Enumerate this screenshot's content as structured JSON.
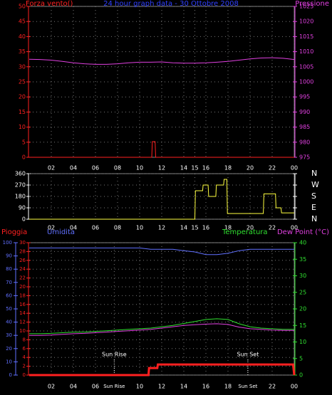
{
  "chart_data": [
    {
      "type": "line",
      "title": "24 hour graph data - 30 Ottobre 2008",
      "xlim": [
        0,
        24
      ],
      "xticks": [
        {
          "value": 2,
          "label": "02"
        },
        {
          "value": 4,
          "label": "04"
        },
        {
          "value": 6,
          "label": "06"
        },
        {
          "value": 8,
          "label": "08"
        },
        10,
        12,
        14,
        15,
        16,
        18,
        20,
        22,
        {
          "value": 24,
          "label": "00"
        }
      ],
      "ylim": [
        0,
        50
      ],
      "yticks": [
        0,
        5,
        10,
        15,
        20,
        25,
        30,
        35,
        40,
        45,
        50
      ],
      "ycolor": "#ff2020",
      "y2lim": [
        975,
        1025
      ],
      "y2ticks": [
        975,
        980,
        985,
        990,
        995,
        1000,
        1005,
        1010,
        1015,
        1020,
        1025
      ],
      "y2color": "#e040e0",
      "grid": true,
      "series": [
        {
          "name": "Forza vento()",
          "color": "#ff2020",
          "x": [
            0,
            11.1,
            11.15,
            11.4,
            11.45,
            24
          ],
          "values": [
            0,
            0,
            5.2,
            5.2,
            0,
            0
          ]
        },
        {
          "name": "Pressione",
          "color": "#e040e0",
          "axis": "y2",
          "x": [
            0,
            1,
            2,
            3,
            4,
            5,
            6,
            7,
            8,
            9,
            10,
            11,
            12,
            13,
            14,
            15,
            16,
            17,
            18,
            19,
            20,
            21,
            22,
            23,
            24
          ],
          "values": [
            1007.5,
            1007.4,
            1007.2,
            1006.8,
            1006.3,
            1006,
            1005.8,
            1005.8,
            1006,
            1006.3,
            1006.5,
            1006.5,
            1006.6,
            1006.3,
            1006.2,
            1006.2,
            1006.3,
            1006.5,
            1006.8,
            1007.2,
            1007.6,
            1007.9,
            1008,
            1007.8,
            1007.4
          ]
        }
      ]
    },
    {
      "type": "line",
      "xlim": [
        0,
        24
      ],
      "xticks": [
        {
          "value": 2,
          "label": "02"
        },
        {
          "value": 4,
          "label": "04"
        },
        {
          "value": 6,
          "label": "06"
        },
        {
          "value": 8,
          "label": "08"
        },
        10,
        12,
        14,
        15,
        16,
        18,
        20,
        22,
        {
          "value": 24,
          "label": "00"
        }
      ],
      "ylim": [
        0,
        360
      ],
      "yticks": [
        0,
        90,
        180,
        270,
        360
      ],
      "ycolor": "#ffffff",
      "y2lim": [
        0,
        360
      ],
      "y2ticks": [
        {
          "value": 0,
          "label": "N"
        },
        {
          "value": 90,
          "label": "E"
        },
        {
          "value": 180,
          "label": "S"
        },
        {
          "value": 270,
          "label": "W"
        },
        {
          "value": 360,
          "label": "N"
        }
      ],
      "y2color": "#ffffff",
      "grid": true,
      "series": [
        {
          "color": "#ffff40",
          "x": [
            0,
            15,
            15.05,
            15.7,
            15.75,
            16.2,
            16.25,
            16.9,
            16.95,
            17.6,
            17.65,
            17.9,
            17.95,
            21.2,
            21.25,
            22.3,
            22.35,
            22.8,
            22.85,
            24
          ],
          "values": [
            0,
            0,
            225,
            225,
            270,
            270,
            180,
            180,
            270,
            270,
            315,
            315,
            45,
            45,
            200,
            200,
            90,
            90,
            50,
            50
          ]
        }
      ]
    },
    {
      "type": "line",
      "xlim": [
        0,
        24
      ],
      "xticks": [
        {
          "value": 2,
          "label": "02"
        },
        {
          "value": 4,
          "label": "04"
        },
        {
          "value": 6,
          "label": "06"
        },
        {
          "value": 7.7,
          "label": "Sun Rise"
        },
        10,
        12,
        14,
        16,
        18,
        {
          "value": 19.8,
          "label": "Sun Set"
        },
        22,
        {
          "value": 24,
          "label": "00"
        }
      ],
      "ylim": [
        0,
        30
      ],
      "yticks": [
        0,
        2,
        4,
        6,
        8,
        10,
        12,
        14,
        16,
        18,
        20,
        22,
        24,
        26,
        28,
        30
      ],
      "ycolor": "#ff2020",
      "y3lim": [
        0,
        100
      ],
      "y3ticks": [
        0,
        10,
        20,
        30,
        40,
        50,
        60,
        70,
        80,
        90,
        100
      ],
      "y3color": "#6070ff",
      "y2lim": [
        0,
        40
      ],
      "y2ticks": [
        0,
        5,
        10,
        15,
        20,
        25,
        30,
        35,
        40
      ],
      "y2color": "#30e030",
      "grid": true,
      "annotations": [
        {
          "text": "Sun Rise",
          "x": 7.7
        },
        {
          "text": "Sun Set",
          "x": 19.8
        }
      ],
      "series": [
        {
          "name": "Pioggia",
          "color": "#ff2020",
          "width": 3,
          "x": [
            0,
            10.8,
            10.85,
            11.6,
            11.65,
            23.9,
            24
          ],
          "values": [
            0,
            0,
            1.6,
            1.6,
            2.4,
            2.4,
            0
          ]
        },
        {
          "name": "Umidita",
          "color": "#6070ff",
          "axis": "y3",
          "x": [
            0,
            1,
            2,
            3,
            4,
            5,
            6,
            7,
            8,
            9,
            10,
            11,
            12,
            13,
            14,
            15,
            16,
            17,
            18,
            19,
            20,
            21,
            22,
            23,
            24
          ],
          "values": [
            96,
            96,
            96,
            96,
            96,
            96,
            96,
            96,
            96,
            96,
            96,
            95,
            95,
            95,
            94,
            93,
            91,
            91,
            92,
            94,
            95,
            95,
            95,
            95,
            95
          ]
        },
        {
          "name": "Temperatura",
          "color": "#30e030",
          "axis": "y2",
          "x": [
            0,
            1,
            2,
            3,
            4,
            5,
            6,
            7,
            8,
            9,
            10,
            11,
            12,
            13,
            14,
            15,
            16,
            17,
            18,
            19,
            20,
            21,
            22,
            23,
            24
          ],
          "values": [
            12.5,
            12.5,
            12.6,
            12.8,
            13,
            13,
            13.2,
            13.4,
            13.6,
            13.8,
            14,
            14.2,
            14.6,
            15,
            15.6,
            16.2,
            16.8,
            17,
            16.8,
            15.5,
            14.6,
            14.2,
            14,
            13.8,
            13.8
          ]
        },
        {
          "name": "Dew Point (°C)",
          "color": "#e040e0",
          "axis": "y2",
          "x": [
            0,
            1,
            2,
            3,
            4,
            5,
            6,
            7,
            8,
            9,
            10,
            11,
            12,
            13,
            14,
            15,
            16,
            17,
            18,
            19,
            20,
            21,
            22,
            23,
            24
          ],
          "values": [
            12,
            12,
            12.1,
            12.3,
            12.5,
            12.6,
            12.8,
            13,
            13.2,
            13.4,
            13.6,
            13.8,
            14.2,
            14.6,
            15,
            15.2,
            15.4,
            15.5,
            15.3,
            14.5,
            14,
            13.8,
            13.6,
            13.5,
            13.5
          ]
        }
      ]
    }
  ]
}
